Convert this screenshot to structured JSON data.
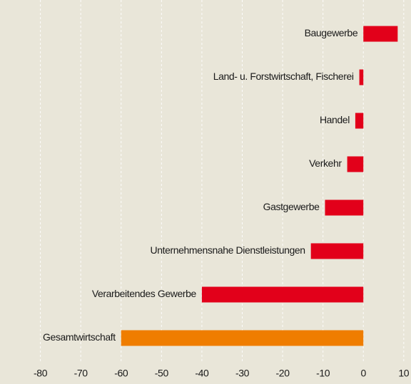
{
  "chart_data": {
    "type": "hbar",
    "categories": [
      "Baugewerbe",
      "Land- u. Forstwirtschaft, Fischerei",
      "Handel",
      "Verkehr",
      "Gastgewerbe",
      "Unternehmensnahe Dienstleistungen",
      "Verarbeitendes Gewerbe",
      "Gesamtwirtschaft"
    ],
    "values": [
      8.5,
      -1,
      -2,
      -4,
      -9.5,
      -13,
      -40,
      -60
    ],
    "colors": [
      "#e2001a",
      "#e2001a",
      "#e2001a",
      "#e2001a",
      "#e2001a",
      "#e2001a",
      "#e2001a",
      "#ef7d00"
    ],
    "xlim": [
      -90,
      11.8
    ],
    "xticks": [
      -80,
      -70,
      -60,
      -50,
      -40,
      -30,
      -20,
      -10,
      0,
      10
    ],
    "grid": true
  }
}
